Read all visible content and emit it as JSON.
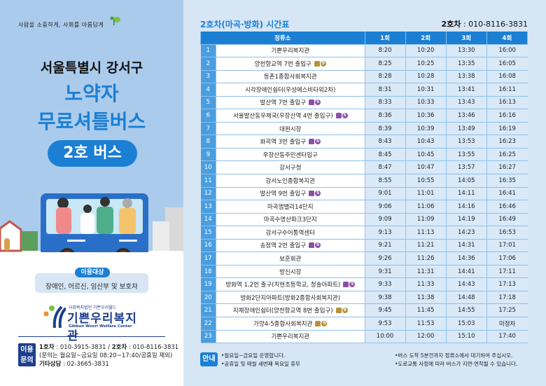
{
  "left": {
    "slogan": "사람을 소중하게, 사회를 아름답게",
    "region": "서울특별시 강서구",
    "title_line1": "노약자",
    "title_line2": "무료셔틀버스",
    "bus_label": "2호 버스",
    "target_label": "이용대상",
    "target_value": "장애인, 어르신, 임산부 및 보호자",
    "org_sub": "사회복지법인 기쁜우리월드",
    "org_name": "기쁜우리복지관",
    "org_en": "Gibbun Woori Welfare Center",
    "inquiry_label_1": "이용",
    "inquiry_label_2": "문의",
    "bus1_label": "1호차",
    "bus1_phone": " : 010-3915-3831 / ",
    "bus2_label": "2호차",
    "bus2_phone": " : 010-8116-3831",
    "hours": "(문의는 월요일~금요일 08:20~17:40/공휴일 제외)",
    "other_label": "기타상담",
    "other_phone": " : 02-3665-3831"
  },
  "timetable": {
    "title": "2호차(마곡·방화) 시간표",
    "phone_label": "2호차",
    "phone": " : 010-8116-3831",
    "headers": [
      "정류소",
      "1회",
      "2회",
      "3회",
      "4회"
    ],
    "line_colors": {
      "9": "#b8903a",
      "5": "#8b4fa6"
    },
    "rows": [
      {
        "no": "1",
        "stop": "기쁜우리복지관",
        "line": null,
        "times": [
          "8:20",
          "10:20",
          "13:30",
          "16:00"
        ]
      },
      {
        "no": "2",
        "stop": "양천향교역 7번 출입구",
        "line": "9",
        "times": [
          "8:25",
          "10:25",
          "13:35",
          "16:05"
        ]
      },
      {
        "no": "3",
        "stop": "등촌1종합사회복지관",
        "line": null,
        "times": [
          "8:28",
          "10:28",
          "13:38",
          "16:08"
        ]
      },
      {
        "no": "4",
        "stop": "시각장애인쉼터(우성에스비타워2차)",
        "line": null,
        "times": [
          "8:31",
          "10:31",
          "13:41",
          "16:11"
        ]
      },
      {
        "no": "5",
        "stop": "발산역 7번 출입구",
        "line": "5",
        "times": [
          "8:33",
          "10:33",
          "13:43",
          "16:13"
        ]
      },
      {
        "no": "6",
        "stop": "서울발산동우체국(우장산역 4번 출입구)",
        "line": "5",
        "times": [
          "8:36",
          "10:36",
          "13:46",
          "16:16"
        ]
      },
      {
        "no": "7",
        "stop": "대원시장",
        "line": null,
        "times": [
          "8:39",
          "10:39",
          "13:49",
          "16:19"
        ]
      },
      {
        "no": "8",
        "stop": "화곡역 3번 출입구",
        "line": "5",
        "times": [
          "8:43",
          "10:43",
          "13:53",
          "16:23"
        ]
      },
      {
        "no": "9",
        "stop": "우장산동주민센터입구",
        "line": null,
        "times": [
          "8:45",
          "10:45",
          "13:55",
          "16:25"
        ]
      },
      {
        "no": "10",
        "stop": "강서구청",
        "line": null,
        "times": [
          "8:47",
          "10:47",
          "13:57",
          "16:27"
        ]
      },
      {
        "no": "11",
        "stop": "강서노인종합복지관",
        "line": null,
        "times": [
          "8:55",
          "10:55",
          "14:05",
          "16:35"
        ]
      },
      {
        "no": "12",
        "stop": "발산역 9번 출입구",
        "line": "5",
        "times": [
          "9:01",
          "11:01",
          "14:11",
          "16:41"
        ]
      },
      {
        "no": "13",
        "stop": "마곡엠밸리14단지",
        "line": null,
        "times": [
          "9:06",
          "11:06",
          "14:16",
          "16:46"
        ]
      },
      {
        "no": "14",
        "stop": "마곡수명산파크3단지",
        "line": null,
        "times": [
          "9:09",
          "11:09",
          "14:19",
          "16:49"
        ]
      },
      {
        "no": "15",
        "stop": "강서구수어통역센터",
        "line": null,
        "times": [
          "9:13",
          "11:13",
          "14:23",
          "16:53"
        ]
      },
      {
        "no": "16",
        "stop": "송정역 2번 출입구",
        "line": "5",
        "times": [
          "9:21",
          "11:21",
          "14:31",
          "17:01"
        ]
      },
      {
        "no": "17",
        "stop": "보훈회관",
        "line": null,
        "times": [
          "9:26",
          "11:26",
          "14:36",
          "17:06"
        ]
      },
      {
        "no": "18",
        "stop": "방신시장",
        "line": null,
        "times": [
          "9:31",
          "11:31",
          "14:41",
          "17:11"
        ]
      },
      {
        "no": "19",
        "stop": "방화역 1,2번 출구(치현초등학교, 청솔아파트)",
        "line": "5",
        "times": [
          "9:33",
          "11:33",
          "14:43",
          "17:13"
        ]
      },
      {
        "no": "20",
        "stop": "방화2단지아파트(방화2종합사회복지관)",
        "line": null,
        "times": [
          "9:38",
          "11:38",
          "14:48",
          "17:18"
        ]
      },
      {
        "no": "21",
        "stop": "지체장애인쉼터(양천향교역 8번 출입구)",
        "line": "9",
        "times": [
          "9:45",
          "11:45",
          "14:55",
          "17:25"
        ]
      },
      {
        "no": "22",
        "stop": "가양4-5종합사회복지관",
        "line": "9",
        "times": [
          "9:53",
          "11:53",
          "15:03",
          "미정차"
        ]
      },
      {
        "no": "23",
        "stop": "기쁜우리복지관",
        "line": null,
        "times": [
          "10:00",
          "12:00",
          "15:10",
          "17:40"
        ]
      }
    ]
  },
  "notice": {
    "label": "안내",
    "items_left": [
      "•월요일~금요일 운영합니다.",
      "•공휴일 및 매월 세번째 목요일 휴무"
    ],
    "items_right": [
      "•버스 도착 5분전까지 정류소에서 대기하여 주십시오.",
      "•도로교통 사정에 따라 버스가 지연·연착될 수 있습니다."
    ]
  }
}
